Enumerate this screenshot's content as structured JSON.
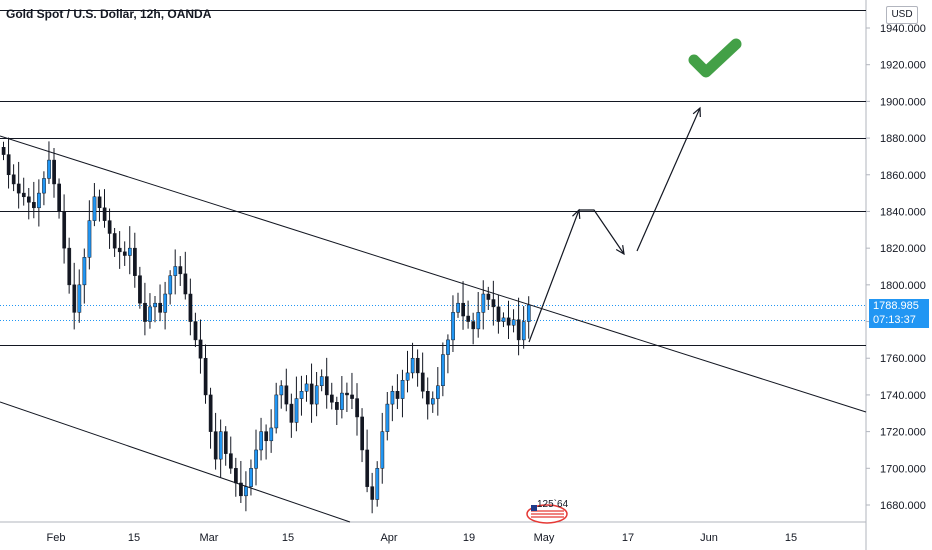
{
  "title": "Gold Spot / U.S. Dollar, 12h, OANDA",
  "currency": "USD",
  "last_price": "1788.985",
  "countdown": "07:13:37",
  "badge_text": "125`64",
  "colors": {
    "up": "#2196f3",
    "down": "#131722",
    "line": "#131722",
    "check": "#43a047",
    "dotted": "#2196f3"
  },
  "chart_data": {
    "type": "candlestick",
    "title": "Gold Spot / U.S. Dollar, 12h, OANDA",
    "y_ticks": [
      "1940.000",
      "1920.000",
      "1900.000",
      "1880.000",
      "1860.000",
      "1840.000",
      "1820.000",
      "1800.000",
      "1780.000",
      "1760.000",
      "1740.000",
      "1720.000",
      "1700.000",
      "1680.000"
    ],
    "x_ticks": [
      "Feb",
      "15",
      "Mar",
      "15",
      "Apr",
      "19",
      "May",
      "17",
      "Jun",
      "15"
    ],
    "ylim": [
      1672,
      1950
    ],
    "horizontal_levels": [
      1950,
      1900,
      1880,
      1840,
      1767
    ],
    "price_marks": [
      1788.985,
      1781
    ],
    "close_series": [
      1871,
      1860,
      1855,
      1850,
      1848,
      1845,
      1842,
      1850,
      1858,
      1868,
      1855,
      1840,
      1820,
      1800,
      1785,
      1800,
      1815,
      1835,
      1848,
      1842,
      1835,
      1828,
      1820,
      1818,
      1816,
      1820,
      1805,
      1790,
      1780,
      1788,
      1790,
      1785,
      1795,
      1805,
      1810,
      1806,
      1795,
      1780,
      1770,
      1760,
      1740,
      1720,
      1705,
      1720,
      1708,
      1700,
      1692,
      1685,
      1690,
      1700,
      1710,
      1720,
      1715,
      1722,
      1740,
      1745,
      1735,
      1725,
      1738,
      1742,
      1746,
      1735,
      1745,
      1750,
      1740,
      1736,
      1732,
      1741,
      1740,
      1738,
      1728,
      1710,
      1690,
      1683,
      1700,
      1720,
      1735,
      1742,
      1738,
      1748,
      1752,
      1760,
      1752,
      1742,
      1735,
      1738,
      1745,
      1762,
      1770,
      1785,
      1790,
      1783,
      1780,
      1776,
      1785,
      1795,
      1792,
      1788,
      1780,
      1782,
      1778,
      1781,
      1770,
      1780,
      1789
    ],
    "projection_path": [
      [
        1767,
        "Apr 29"
      ],
      [
        1840,
        "May 7"
      ],
      [
        1840,
        "May 10"
      ],
      [
        1818,
        "May 15"
      ],
      [
        1895,
        "May 29"
      ]
    ]
  }
}
